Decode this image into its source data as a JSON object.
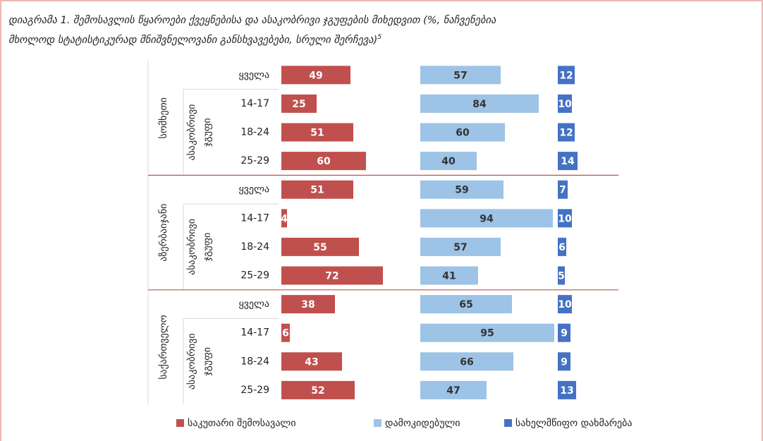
{
  "chart_data": {
    "type": "bar",
    "orientation": "horizontal",
    "title": "დიაგრამა 1. შემოსავლის წყაროები ქვეყნებისა და ასაკობრივი ჯგუფების მიხედვით  (%, ნაჩვენებია",
    "title_line2": "მხოლოდ სტატისტიკურად მნიშვნელოვანი განსხვავებები, სრული შერჩევა)",
    "footnote_ref": "5",
    "groups": [
      {
        "name": "სომხეთი",
        "sublabel": [
          "ასაკობრივი",
          "ჯგუფი"
        ]
      },
      {
        "name": "აზერბაიჯანი",
        "sublabel": [
          "ასაკობრივი",
          "ჯგუფი"
        ]
      },
      {
        "name": "საქართველო",
        "sublabel": [
          "ასაკობრივი",
          "ჯგუფი"
        ]
      }
    ],
    "categories": [
      "ყველა",
      "14-17",
      "18-24",
      "25-29",
      "ყველა",
      "14-17",
      "18-24",
      "25-29",
      "ყველა",
      "14-17",
      "18-24",
      "25-29"
    ],
    "series": [
      {
        "name": "საკუთარი შემოსავალი",
        "color": "#c0504d",
        "label_color": "#ffffff",
        "values": [
          49,
          25,
          51,
          60,
          51,
          4,
          55,
          72,
          38,
          6,
          43,
          52
        ]
      },
      {
        "name": "დამოკიდებული",
        "color": "#9dc3e6",
        "label_color": "#333333",
        "values": [
          57,
          84,
          60,
          40,
          59,
          94,
          57,
          41,
          65,
          95,
          66,
          47
        ]
      },
      {
        "name": "სახელმწიფო დახმარება",
        "color": "#4472c4",
        "label_color": "#ffffff",
        "values": [
          12,
          10,
          12,
          14,
          7,
          10,
          6,
          5,
          10,
          9,
          9,
          13
        ]
      }
    ]
  }
}
